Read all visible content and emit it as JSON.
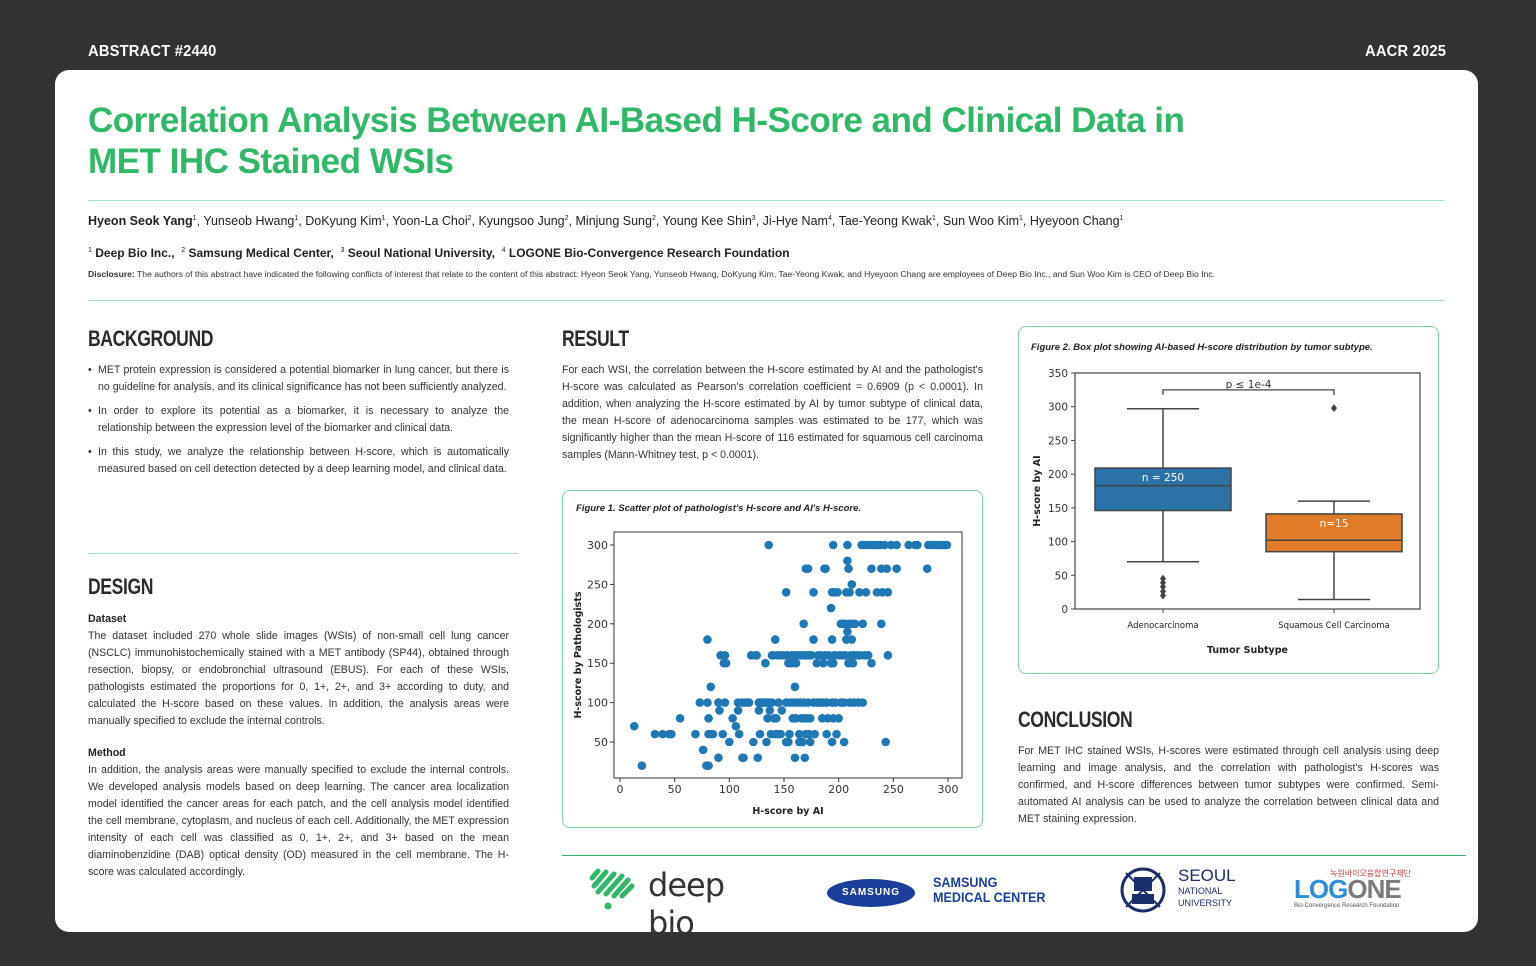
{
  "header": {
    "abstract_label": "ABSTRACT #2440",
    "conference_label": "AACR 2025"
  },
  "title": {
    "line1": "Correlation Analysis Between AI-Based H-Score and Clinical Data in",
    "line2": "MET IHC Stained WSIs"
  },
  "authors": [
    {
      "name": "Hyeon Seok Yang",
      "aff": "1",
      "bold": true
    },
    {
      "name": "Yunseob Hwang",
      "aff": "1"
    },
    {
      "name": "DoKyung Kim",
      "aff": "1"
    },
    {
      "name": "Yoon-La Choi",
      "aff": "2"
    },
    {
      "name": "Kyungsoo Jung",
      "aff": "2"
    },
    {
      "name": "Minjung Sung",
      "aff": "2"
    },
    {
      "name": "Young Kee Shin",
      "aff": "3"
    },
    {
      "name": "Ji-Hye Nam",
      "aff": "4"
    },
    {
      "name": "Tae-Yeong Kwak",
      "aff": "1"
    },
    {
      "name": "Sun Woo Kim",
      "aff": "1"
    },
    {
      "name": "Hyeyoon Chang",
      "aff": "1"
    }
  ],
  "affiliations": [
    {
      "num": "1",
      "name": "Deep Bio Inc.,"
    },
    {
      "num": "2",
      "name": "Samsung Medical Center,"
    },
    {
      "num": "3",
      "name": "Seoul National University,"
    },
    {
      "num": "4",
      "name": "LOGONE Bio-Convergence Research Foundation"
    }
  ],
  "disclosure": {
    "label": "Disclosure:",
    "text": "The authors of this abstract have indicated the following conflicts of interest that relate to the content of this abstract: Hyeon Seok Yang, Yunseob Hwang, DoKyung Kim, Tae-Yeong Kwak, and Hyeyoon Chang are employees of Deep Bio Inc., and Sun Woo Kim is CEO of Deep Bio Inc."
  },
  "background": {
    "heading": "BACKGROUND",
    "bullets": [
      "MET protein expression is considered a potential biomarker in lung cancer, but there is no guideline for analysis, and its clinical significance has not been sufficiently analyzed.",
      "In order to explore its potential as a biomarker, it is necessary to analyze the relationship between the expression level of the biomarker and clinical data.",
      "In this study, we analyze the relationship between H-score, which is automatically measured based on cell detection detected by a deep learning model, and clinical data."
    ]
  },
  "design": {
    "heading": "DESIGN",
    "dataset_label": "Dataset",
    "dataset_text": "The dataset included 270 whole slide images (WSIs) of non-small cell lung cancer (NSCLC) immunohistochemically stained with a MET antibody (SP44), obtained through resection, biopsy, or endobronchial ultrasound (EBUS). For each of these WSIs, pathologists estimated the proportions for 0, 1+, 2+, and 3+ according to duty, and calculated the H-score based on these values. In addition, the analysis areas were manually specified to exclude the internal controls.",
    "method_label": "Method",
    "method_text": "In addition, the analysis areas were manually specified to exclude the internal controls. We developed analysis models based on deep learning. The cancer area localization model identified the cancer areas for each patch, and the cell analysis model identified the cell membrane, cytoplasm, and nucleus of each cell. Additionally, the MET expression intensity of each cell was classified as 0, 1+, 2+, and 3+ based on the mean diaminobenzidine (DAB) optical density (OD) measured in the cell membrane. The H-score was calculated accordingly."
  },
  "result": {
    "heading": "RESULT",
    "text": "For each WSI, the correlation between the H-score estimated by AI and the pathologist's H-score was calculated as Pearson's correlation coefficient = 0.6909 (p < 0.0001). In addition, when analyzing the H-score estimated by AI by tumor subtype of clinical data, the mean H-score of adenocarcinoma samples was estimated to be 177, which was significantly higher than the mean H-score of 116 estimated for squamous cell carcinoma samples (Mann-Whitney test, p < 0.0001)."
  },
  "conclusion": {
    "heading": "CONCLUSION",
    "text": "For MET IHC stained WSIs, H-scores were estimated through cell analysis using deep learning and image analysis, and the correlation with pathologist's H-scores was confirmed, and H-score differences between tumor subtypes were confirmed. Semi-automated AI analysis can be used to analyze the correlation between clinical data and MET staining expression."
  },
  "logos": {
    "deepbio": "deep bio",
    "samsung_badge": "SAMSUNG",
    "samsung_line1": "SAMSUNG",
    "samsung_line2": "MEDICAL CENTER",
    "snu_line1": "SEOUL",
    "snu_line2": "NATIONAL",
    "snu_line3": "UNIVERSITY",
    "logone_korean": "녹원바이오융합연구재단",
    "logone_name": "LOGONE",
    "logone_sub": "Bio-Convergence Research Foundation"
  },
  "colors": {
    "accent_green": "#2fb868",
    "point_blue": "#1f77b4",
    "adeno_blue": "#2a72a8",
    "squamous_orange": "#e07b27"
  },
  "chart_data": [
    {
      "type": "scatter",
      "title": "Figure 1. Scatter plot of pathologist's H-score and AI's H-score.",
      "xlabel": "H-score by AI",
      "ylabel": "H-score by Pathologists",
      "xlim": [
        -3,
        310
      ],
      "ylim": [
        10,
        315
      ],
      "xticks": [
        0,
        50,
        100,
        150,
        200,
        250,
        300
      ],
      "yticks": [
        50,
        100,
        150,
        200,
        250,
        300
      ],
      "grid": false,
      "points": [
        [
          13,
          70
        ],
        [
          20,
          20
        ],
        [
          32,
          60
        ],
        [
          39,
          60
        ],
        [
          45,
          60
        ],
        [
          47,
          60
        ],
        [
          55,
          80
        ],
        [
          69,
          60
        ],
        [
          73,
          100
        ],
        [
          76,
          40
        ],
        [
          79,
          20
        ],
        [
          80,
          100
        ],
        [
          80,
          180
        ],
        [
          81,
          20
        ],
        [
          81,
          80
        ],
        [
          81,
          60
        ],
        [
          83,
          120
        ],
        [
          83,
          60
        ],
        [
          85,
          60
        ],
        [
          90,
          30
        ],
        [
          90,
          100
        ],
        [
          91,
          90
        ],
        [
          92,
          160
        ],
        [
          94,
          60
        ],
        [
          95,
          150
        ],
        [
          96,
          160
        ],
        [
          96,
          100
        ],
        [
          97,
          150
        ],
        [
          100,
          50
        ],
        [
          103,
          80
        ],
        [
          106,
          70
        ],
        [
          108,
          100
        ],
        [
          108,
          90
        ],
        [
          109,
          60
        ],
        [
          112,
          100
        ],
        [
          115,
          100
        ],
        [
          118,
          100
        ],
        [
          112,
          30
        ],
        [
          113,
          30
        ],
        [
          120,
          160
        ],
        [
          122,
          50
        ],
        [
          124,
          160
        ],
        [
          125,
          160
        ],
        [
          126,
          30
        ],
        [
          127,
          100
        ],
        [
          127,
          90
        ],
        [
          128,
          60
        ],
        [
          129,
          100
        ],
        [
          130,
          100
        ],
        [
          132,
          100
        ],
        [
          133,
          150
        ],
        [
          134,
          100
        ],
        [
          134,
          50
        ],
        [
          135,
          80
        ],
        [
          136,
          300
        ],
        [
          136,
          100
        ],
        [
          137,
          90
        ],
        [
          138,
          60
        ],
        [
          139,
          100
        ],
        [
          139,
          160
        ],
        [
          140,
          160
        ],
        [
          141,
          80
        ],
        [
          142,
          60
        ],
        [
          142,
          180
        ],
        [
          143,
          80
        ],
        [
          144,
          160
        ],
        [
          144,
          60
        ],
        [
          145,
          100
        ],
        [
          147,
          160
        ],
        [
          147,
          60
        ],
        [
          148,
          90
        ],
        [
          150,
          160
        ],
        [
          152,
          240
        ],
        [
          152,
          100
        ],
        [
          152,
          50
        ],
        [
          153,
          160
        ],
        [
          154,
          150
        ],
        [
          154,
          50
        ],
        [
          155,
          60
        ],
        [
          156,
          100
        ],
        [
          157,
          160
        ],
        [
          157,
          150
        ],
        [
          158,
          80
        ],
        [
          159,
          100
        ],
        [
          160,
          160
        ],
        [
          160,
          30
        ],
        [
          160,
          120
        ],
        [
          161,
          150
        ],
        [
          161,
          80
        ],
        [
          162,
          100
        ],
        [
          163,
          160
        ],
        [
          164,
          60
        ],
        [
          164,
          50
        ],
        [
          165,
          100
        ],
        [
          165,
          160
        ],
        [
          166,
          80
        ],
        [
          166,
          50
        ],
        [
          167,
          50
        ],
        [
          168,
          100
        ],
        [
          168,
          200
        ],
        [
          168,
          160
        ],
        [
          169,
          80
        ],
        [
          169,
          30
        ],
        [
          170,
          60
        ],
        [
          170,
          160
        ],
        [
          170,
          270
        ],
        [
          171,
          80
        ],
        [
          172,
          270
        ],
        [
          172,
          100
        ],
        [
          173,
          60
        ],
        [
          173,
          160
        ],
        [
          174,
          80
        ],
        [
          174,
          50
        ],
        [
          175,
          160
        ],
        [
          177,
          100
        ],
        [
          177,
          240
        ],
        [
          177,
          180
        ],
        [
          178,
          60
        ],
        [
          180,
          150
        ],
        [
          180,
          100
        ],
        [
          181,
          160
        ],
        [
          183,
          100
        ],
        [
          184,
          160
        ],
        [
          185,
          80
        ],
        [
          186,
          100
        ],
        [
          186,
          150
        ],
        [
          187,
          270
        ],
        [
          188,
          270
        ],
        [
          188,
          160
        ],
        [
          189,
          100
        ],
        [
          189,
          60
        ],
        [
          190,
          80
        ],
        [
          191,
          160
        ],
        [
          193,
          150
        ],
        [
          193,
          220
        ],
        [
          194,
          240
        ],
        [
          194,
          180
        ],
        [
          194,
          100
        ],
        [
          194,
          50
        ],
        [
          195,
          300
        ],
        [
          195,
          80
        ],
        [
          195,
          150
        ],
        [
          196,
          240
        ],
        [
          196,
          160
        ],
        [
          197,
          100
        ],
        [
          198,
          60
        ],
        [
          199,
          240
        ],
        [
          200,
          80
        ],
        [
          200,
          160
        ],
        [
          202,
          200
        ],
        [
          202,
          100
        ],
        [
          203,
          160
        ],
        [
          204,
          200
        ],
        [
          205,
          50
        ],
        [
          205,
          100
        ],
        [
          206,
          200
        ],
        [
          206,
          160
        ],
        [
          207,
          240
        ],
        [
          207,
          180
        ],
        [
          208,
          190
        ],
        [
          208,
          280
        ],
        [
          208,
          300
        ],
        [
          209,
          270
        ],
        [
          209,
          150
        ],
        [
          210,
          200
        ],
        [
          210,
          240
        ],
        [
          210,
          100
        ],
        [
          211,
          160
        ],
        [
          212,
          250
        ],
        [
          212,
          180
        ],
        [
          213,
          200
        ],
        [
          213,
          150
        ],
        [
          214,
          160
        ],
        [
          214,
          100
        ],
        [
          215,
          200
        ],
        [
          217,
          160
        ],
        [
          218,
          100
        ],
        [
          219,
          240
        ],
        [
          220,
          160
        ],
        [
          221,
          300
        ],
        [
          222,
          100
        ],
        [
          222,
          200
        ],
        [
          223,
          300
        ],
        [
          224,
          160
        ],
        [
          225,
          240
        ],
        [
          226,
          300
        ],
        [
          227,
          160
        ],
        [
          228,
          300
        ],
        [
          230,
          300
        ],
        [
          230,
          270
        ],
        [
          230,
          150
        ],
        [
          232,
          300
        ],
        [
          234,
          300
        ],
        [
          235,
          240
        ],
        [
          236,
          300
        ],
        [
          238,
          300
        ],
        [
          239,
          200
        ],
        [
          239,
          270
        ],
        [
          240,
          240
        ],
        [
          242,
          300
        ],
        [
          243,
          50
        ],
        [
          244,
          270
        ],
        [
          245,
          160
        ],
        [
          245,
          240
        ],
        [
          248,
          300
        ],
        [
          253,
          270
        ],
        [
          253,
          300
        ],
        [
          264,
          300
        ],
        [
          270,
          300
        ],
        [
          272,
          300
        ],
        [
          281,
          270
        ],
        [
          282,
          300
        ],
        [
          285,
          300
        ],
        [
          287,
          300
        ],
        [
          289,
          300
        ],
        [
          291,
          300
        ],
        [
          293,
          300
        ],
        [
          295,
          300
        ],
        [
          297,
          300
        ],
        [
          299,
          300
        ]
      ]
    },
    {
      "type": "box",
      "title": "Figure 2.  Box plot showing AI-based H-score distribution by tumor subtype.",
      "xlabel": "Tumor Subtype",
      "ylabel": "H-score by AI",
      "ylim": [
        0,
        350
      ],
      "yticks": [
        0,
        50,
        100,
        150,
        200,
        250,
        300,
        350
      ],
      "categories": [
        "Adenocarcinoma",
        "Squamous Cell Carcinoma"
      ],
      "boxes": [
        {
          "name": "Adenocarcinoma",
          "label": "n = 250",
          "whisker_low": 70,
          "q1": 146,
          "median": 183,
          "q3": 209,
          "whisker_high": 297,
          "outliers": [
            20,
            26,
            33,
            39,
            45
          ],
          "color": "#2a72a8"
        },
        {
          "name": "Squamous Cell Carcinoma",
          "label": "n=15",
          "whisker_low": 14,
          "q1": 85,
          "median": 102,
          "q3": 141,
          "whisker_high": 160,
          "outliers": [
            298
          ],
          "color": "#e07b27"
        }
      ],
      "annotation": "p ≤ 1e-4"
    }
  ]
}
